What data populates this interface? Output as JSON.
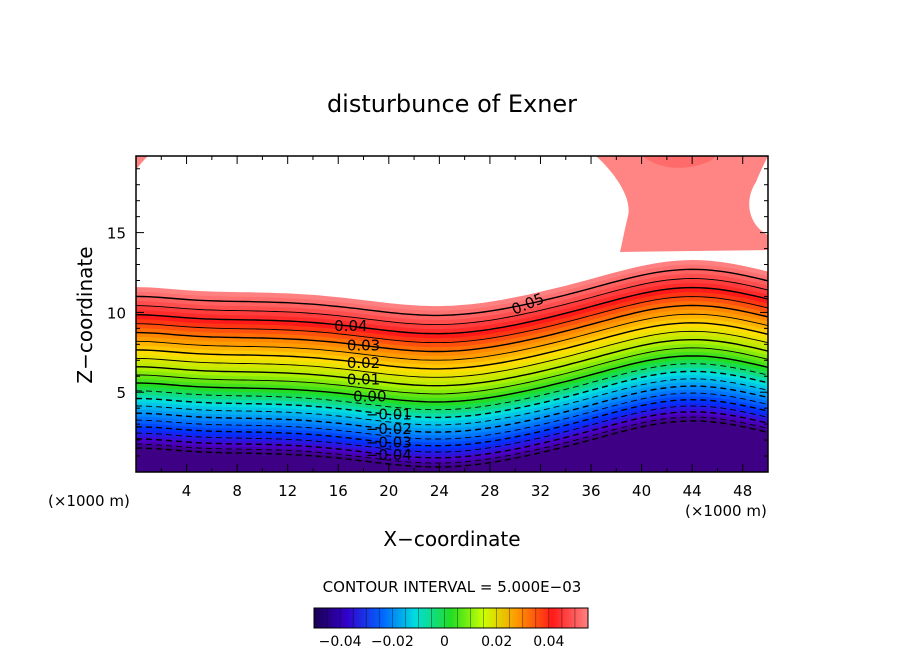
{
  "chart_data": {
    "type": "contour",
    "title": "disturbunce of Exner",
    "xlabel": "X−coordinate",
    "ylabel": "Z−coordinate",
    "x_unit_left": "(×1000 m)",
    "x_unit_right": "(×1000 m)",
    "xlim": [
      0,
      50
    ],
    "ylim": [
      0,
      19.8
    ],
    "x_ticks": [
      "4",
      "8",
      "12",
      "16",
      "20",
      "24",
      "28",
      "32",
      "36",
      "40",
      "44",
      "48"
    ],
    "y_ticks": [
      "5",
      "10",
      "15"
    ],
    "contour_interval_text": "CONTOUR INTERVAL = 5.000E−03",
    "contour_labels": [
      "0.05",
      "0.04",
      "0.03",
      "0.02",
      "0.01",
      "0.00",
      "−0.01",
      "−0.02",
      "−0.03",
      "−0.04"
    ],
    "colorbar_ticks": [
      "−0.04",
      "−0.02",
      "0",
      "0.02",
      "0.04"
    ],
    "colorbar_range": [
      -0.05,
      0.055
    ],
    "grid": false,
    "colors": {
      "max": "#ff7878",
      "red": "#ff1a1a",
      "orange": "#ff9900",
      "yellow": "#ccff00",
      "green": "#22dd22",
      "cyan": "#00e5e5",
      "blue": "#0033ff",
      "purple": "#5a00a8"
    }
  }
}
